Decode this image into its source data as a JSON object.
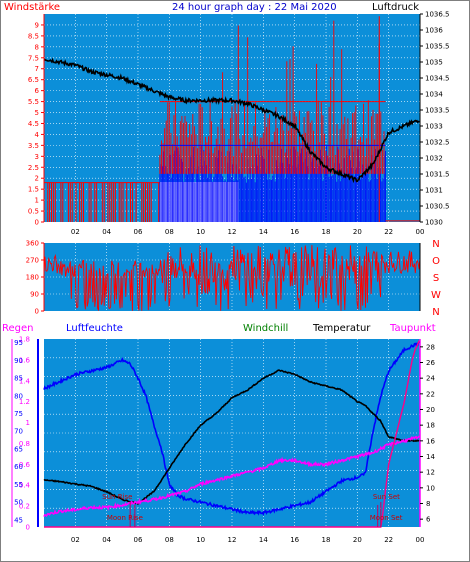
{
  "header": {
    "left": "Windstärke",
    "center": "24 hour graph day : 22 Mai 2020",
    "right": "Luftdruck"
  },
  "legend": {
    "regen": "Regen",
    "luftfeuchte": "Luftfeuchte",
    "windchill": "Windchill",
    "temperatur": "Temperatur",
    "taupunkt": "Taupunkt"
  },
  "colors": {
    "plot_bg": "#0c8fd9",
    "plot_bg_light": "#e6f3fb",
    "wind": "#ff0000",
    "windBlue": "#0000ff",
    "pressure": "#000000",
    "humidity": "#0000ff",
    "temperature": "#000000",
    "dewpoint": "#ff00ff",
    "rain": "#ff0088",
    "axis_left": "#ff0000",
    "axis_right": "#000000"
  },
  "chart_data": [
    {
      "type": "line",
      "name": "wind-pressure",
      "x_ticks": [
        "02",
        "04",
        "06",
        "08",
        "10",
        "12",
        "14",
        "16",
        "18",
        "20",
        "22",
        "00"
      ],
      "y_left": {
        "label": "Windstärke",
        "ticks": [
          "0",
          "0.5",
          "1",
          "1.5",
          "2",
          "2.5",
          "3",
          "3.5",
          "4",
          "4.5",
          "5",
          "5.5",
          "6",
          "6.5",
          "7",
          "7.5",
          "8",
          "8.5",
          "9"
        ],
        "range": [
          0,
          9.5
        ]
      },
      "y_right": {
        "label": "Luftdruck",
        "ticks": [
          "1030",
          "1030.5",
          "1031",
          "1031.5",
          "1032",
          "1032.5",
          "1033",
          "1033.5",
          "1034",
          "1034.5",
          "1035",
          "1035.5",
          "1036",
          "1036.5"
        ],
        "range": [
          1030,
          1036.5
        ]
      },
      "pressure": {
        "x": [
          0,
          1,
          2,
          3,
          4,
          5,
          6,
          7,
          7.5,
          8,
          9,
          10,
          11,
          12,
          13,
          14,
          15,
          16,
          17,
          18,
          19,
          20,
          21,
          22,
          23,
          24
        ],
        "y": [
          1035.1,
          1035.0,
          1034.9,
          1034.7,
          1034.6,
          1034.5,
          1034.3,
          1034.1,
          1034.0,
          1033.9,
          1033.8,
          1033.8,
          1033.8,
          1033.8,
          1033.7,
          1033.5,
          1033.3,
          1033.0,
          1032.2,
          1031.7,
          1031.5,
          1031.3,
          1031.8,
          1032.8,
          1033.0,
          1033.2
        ]
      },
      "wind_gust_range": {
        "x_start": 7.4,
        "x_end": 21.8,
        "low": 0,
        "high": 5.5
      },
      "wind_blue_band": {
        "x_start": 7.4,
        "x_end": 21.8,
        "low": 0,
        "high": 3.5
      }
    },
    {
      "type": "line",
      "name": "wind-direction",
      "y_left": {
        "ticks": [
          "0",
          "90",
          "180",
          "270",
          "360"
        ],
        "range": [
          0,
          360
        ]
      },
      "y_right": {
        "ticks": [
          "N",
          "W",
          "S",
          "O",
          "N"
        ]
      }
    },
    {
      "type": "line",
      "name": "temp-humidity",
      "x_ticks": [
        "02",
        "04",
        "06",
        "08",
        "10",
        "12",
        "14",
        "16",
        "18",
        "20",
        "22",
        "00"
      ],
      "y_rain": {
        "ticks": [
          "0",
          "0.2",
          "0.4",
          "0.6",
          "0.8",
          "1",
          "1.2",
          "1.4",
          "1.6",
          "1.8"
        ],
        "range": [
          0,
          1.8
        ]
      },
      "y_humidity": {
        "ticks": [
          "45",
          "50",
          "55",
          "60",
          "65",
          "70",
          "75",
          "80",
          "85",
          "90",
          "95"
        ],
        "range": [
          45,
          95
        ]
      },
      "y_temp": {
        "ticks": [
          "6",
          "8",
          "10",
          "12",
          "14",
          "16",
          "18",
          "20",
          "22",
          "24",
          "26",
          "28"
        ],
        "range": [
          6,
          28
        ]
      },
      "series": [
        {
          "name": "Luftfeuchte",
          "x": [
            0,
            1,
            2,
            3,
            4,
            5,
            5.5,
            6,
            6.5,
            7,
            7.5,
            8,
            8.5,
            9,
            10,
            11,
            12,
            13,
            14,
            15,
            16,
            17,
            18,
            19,
            20,
            20.5,
            21,
            21.5,
            22,
            22.5,
            23,
            23.5,
            24
          ],
          "y": [
            82,
            84,
            86,
            87,
            88,
            90,
            89,
            85,
            80,
            72,
            65,
            55,
            52,
            51,
            50,
            49,
            48,
            47,
            47,
            48,
            49,
            50,
            53,
            56,
            57,
            58,
            70,
            80,
            87,
            90,
            93,
            94,
            95
          ]
        },
        {
          "name": "Temperatur",
          "x": [
            0,
            1,
            2,
            3,
            4,
            5,
            6,
            7,
            8,
            9,
            10,
            11,
            12,
            13,
            14,
            15,
            16,
            17,
            18,
            19,
            20,
            20.5,
            21,
            21.5,
            22,
            23,
            24
          ],
          "y": [
            11,
            10.8,
            10.5,
            10.2,
            9.5,
            8.5,
            8.0,
            9.5,
            12.5,
            15.5,
            18,
            19.5,
            21.5,
            22.5,
            24,
            25,
            24.5,
            23.5,
            23,
            22.5,
            21,
            20.5,
            19.5,
            18.5,
            16.5,
            16,
            16
          ]
        },
        {
          "name": "Taupunkt",
          "x": [
            0,
            1,
            2,
            3,
            4,
            5,
            6,
            7,
            8,
            9,
            10,
            11,
            12,
            13,
            14,
            15,
            16,
            17,
            18,
            19,
            20,
            21,
            22,
            23,
            24
          ],
          "y": [
            6.5,
            7.0,
            7.2,
            7.5,
            7.5,
            7.8,
            8.2,
            8.5,
            9.0,
            9.5,
            10.5,
            11,
            11.5,
            12,
            12.5,
            13.5,
            13.5,
            13.0,
            13.0,
            13.5,
            14.0,
            14.5,
            15.5,
            16.0,
            16.5
          ]
        },
        {
          "name": "Regen",
          "x": [
            0,
            21.5,
            21.6,
            22.0,
            22.5,
            23.0,
            23.5,
            23.7,
            24
          ],
          "y": [
            0,
            0,
            0.1,
            0.6,
            0.9,
            1.2,
            1.6,
            1.7,
            1.8
          ]
        }
      ],
      "annotations": [
        {
          "label": "Sun Rise",
          "x": 5.5
        },
        {
          "label": "Moon Rise",
          "x": 5.8
        },
        {
          "label": "Sun Set",
          "x": 21.5
        },
        {
          "label": "Moon Set",
          "x": 21.3
        }
      ]
    }
  ]
}
